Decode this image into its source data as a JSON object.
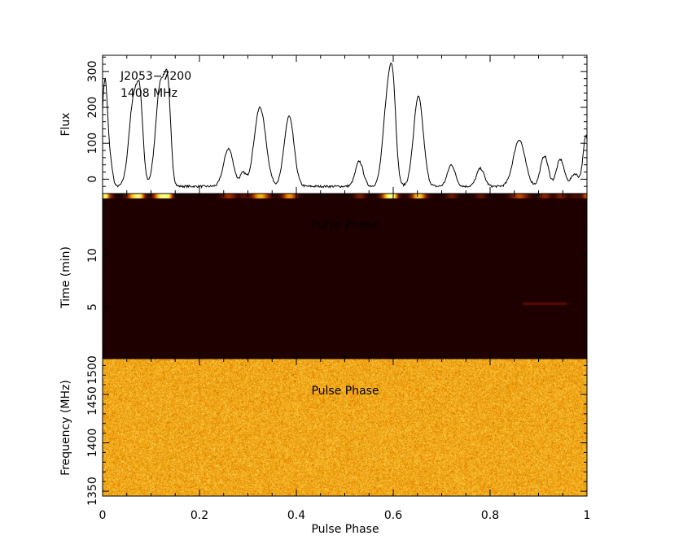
{
  "source": {
    "name": "J2053−7200",
    "frequency": "1408 MHz"
  },
  "axes": {
    "x_label": "Pulse Phase",
    "flux_label": "Flux",
    "time_label": "Time (min)",
    "freq_label": "Frequency (MHz)",
    "overlay_label_time": "Pulse Phase",
    "overlay_label_freq": "Pulse Phase"
  },
  "chart_data": [
    {
      "type": "line",
      "panel": "profile",
      "xlabel": "",
      "ylabel": "Flux",
      "xlim": [
        0,
        1
      ],
      "ylim": [
        -40,
        345
      ],
      "yticks": [
        0,
        100,
        200,
        300
      ],
      "components": [
        {
          "center": 0.005,
          "height": 300,
          "width": 0.006
        },
        {
          "center": 0.018,
          "height": 40,
          "width": 0.004
        },
        {
          "center": 0.065,
          "height": 250,
          "width": 0.01
        },
        {
          "center": 0.078,
          "height": 160,
          "width": 0.006
        },
        {
          "center": 0.12,
          "height": 290,
          "width": 0.01
        },
        {
          "center": 0.135,
          "height": 210,
          "width": 0.006
        },
        {
          "center": 0.26,
          "height": 105,
          "width": 0.01
        },
        {
          "center": 0.29,
          "height": 35,
          "width": 0.006
        },
        {
          "center": 0.325,
          "height": 220,
          "width": 0.012
        },
        {
          "center": 0.385,
          "height": 195,
          "width": 0.01
        },
        {
          "center": 0.53,
          "height": 70,
          "width": 0.008
        },
        {
          "center": 0.59,
          "height": 270,
          "width": 0.01
        },
        {
          "center": 0.6,
          "height": 150,
          "width": 0.006
        },
        {
          "center": 0.652,
          "height": 250,
          "width": 0.01
        },
        {
          "center": 0.72,
          "height": 60,
          "width": 0.008
        },
        {
          "center": 0.78,
          "height": 50,
          "width": 0.008
        },
        {
          "center": 0.86,
          "height": 130,
          "width": 0.012
        },
        {
          "center": 0.912,
          "height": 85,
          "width": 0.008
        },
        {
          "center": 0.945,
          "height": 75,
          "width": 0.008
        },
        {
          "center": 0.975,
          "height": 35,
          "width": 0.008
        },
        {
          "center": 0.998,
          "height": 140,
          "width": 0.006
        }
      ],
      "baseline": -20
    },
    {
      "type": "heatmap",
      "panel": "time-phase",
      "xlabel": "",
      "ylabel": "Time (min)",
      "xlim": [
        0,
        1
      ],
      "ylim": [
        0,
        16
      ],
      "yticks": [
        5,
        10
      ],
      "colormap": [
        "#1c0000",
        "#9a2a00",
        "#f0a000",
        "#ffff80"
      ],
      "background": "#1f0000",
      "bright_rows": [
        16
      ]
    },
    {
      "type": "heatmap",
      "panel": "frequency-phase",
      "xlabel": "Pulse Phase",
      "ylabel": "Frequency (MHz)",
      "xlim": [
        0,
        1
      ],
      "ylim": [
        1345,
        1487
      ],
      "yticks": [
        1350,
        1400,
        1450,
        1500
      ],
      "colormap": [
        "#c04000",
        "#e89000",
        "#f8c030",
        "#fff0a0"
      ],
      "xticks": [
        0,
        0.2,
        0.4,
        0.6,
        0.8,
        1
      ]
    }
  ],
  "tick_labels": {
    "x": [
      "0",
      "0.2",
      "0.4",
      "0.6",
      "0.8",
      "1"
    ],
    "flux": [
      "0",
      "100",
      "200",
      "300"
    ],
    "time": [
      "5",
      "10"
    ],
    "freq": [
      "1350",
      "1400",
      "1450",
      "1500"
    ]
  }
}
